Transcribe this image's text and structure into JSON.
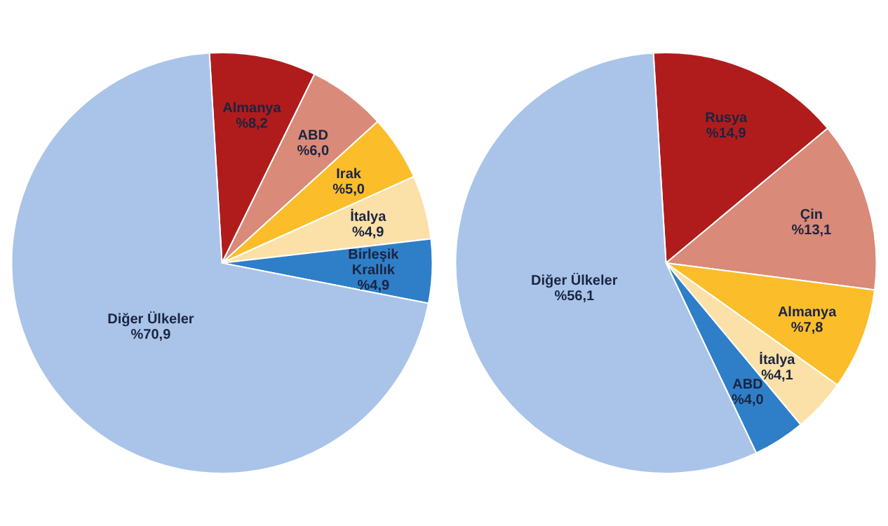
{
  "chart_data": [
    {
      "type": "pie",
      "categories": [
        "Almanya",
        "ABD",
        "Irak",
        "İtalya",
        "Birleşik Krallık",
        "Diğer Ülkeler"
      ],
      "values": [
        8.2,
        6.0,
        5.0,
        4.9,
        4.9,
        70.9
      ],
      "value_labels": [
        "%8,2",
        "%6,0",
        "%5,0",
        "%4,9",
        "%4,9",
        "%70,9"
      ],
      "colors": [
        "#b01c1c",
        "#d98a78",
        "#fbbd2a",
        "#fbe0a8",
        "#2f7fc8",
        "#a9c4e8"
      ]
    },
    {
      "type": "pie",
      "categories": [
        "Rusya",
        "Çin",
        "Almanya",
        "İtalya",
        "ABD",
        "Diğer Ülkeler"
      ],
      "values": [
        14.9,
        13.1,
        7.8,
        4.1,
        4.0,
        56.1
      ],
      "value_labels": [
        "%14,9",
        "%13,1",
        "%7,8",
        "%4,1",
        "%4,0",
        "%56,1"
      ],
      "colors": [
        "#b01c1c",
        "#d98a78",
        "#fbbd2a",
        "#fbe0a8",
        "#2f7fc8",
        "#a9c4e8"
      ]
    }
  ]
}
